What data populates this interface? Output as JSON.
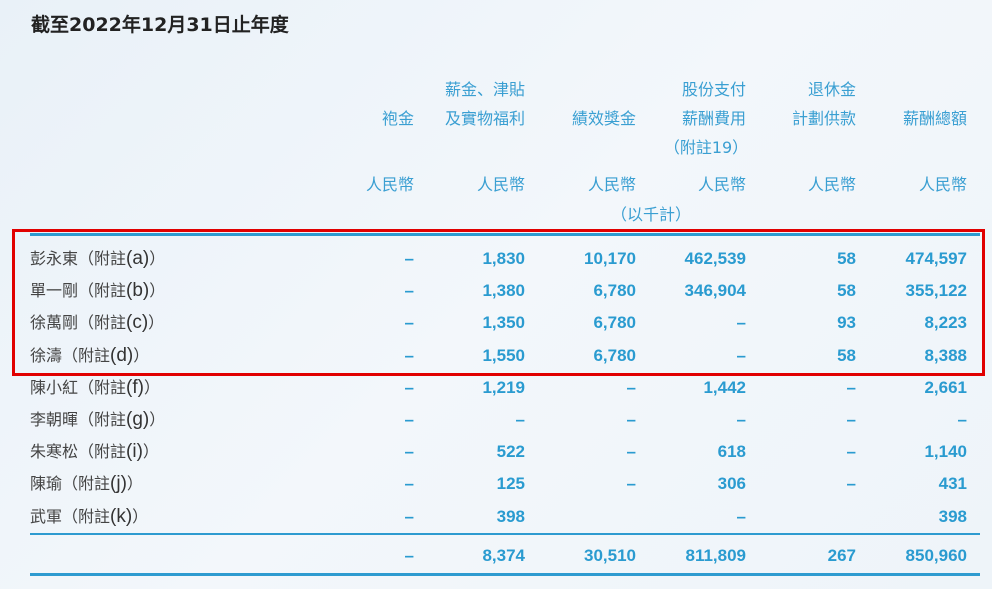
{
  "title": "截至2022年12月31日止年度",
  "columns": [
    {
      "lines": [
        "",
        "袍金"
      ],
      "unit": "人民幣"
    },
    {
      "lines": [
        "薪金、津貼",
        "及實物福利"
      ],
      "unit": "人民幣"
    },
    {
      "lines": [
        "",
        "績效獎金"
      ],
      "unit": "人民幣"
    },
    {
      "lines": [
        "股份支付",
        "薪酬費用",
        "（附註19）"
      ],
      "unit": "人民幣"
    },
    {
      "lines": [
        "退休金",
        "計劃供款"
      ],
      "unit": "人民幣"
    },
    {
      "lines": [
        "",
        "薪酬總額"
      ],
      "unit": "人民幣"
    }
  ],
  "unit_note": "（以千計）",
  "rows": [
    {
      "name": "彭永東（附註",
      "note": "(a)",
      "values": [
        "–",
        "1,830",
        "10,170",
        "462,539",
        "58",
        "474,597"
      ]
    },
    {
      "name": "單一剛（附註",
      "note": "(b)",
      "values": [
        "–",
        "1,380",
        "6,780",
        "346,904",
        "58",
        "355,122"
      ]
    },
    {
      "name": "徐萬剛（附註",
      "note": "(c)",
      "values": [
        "–",
        "1,350",
        "6,780",
        "–",
        "93",
        "8,223"
      ]
    },
    {
      "name": "徐濤（附註",
      "note": "(d)",
      "values": [
        "–",
        "1,550",
        "6,780",
        "–",
        "58",
        "8,388"
      ]
    },
    {
      "name": "陳小紅（附註",
      "note": "(f)",
      "values": [
        "–",
        "1,219",
        "–",
        "1,442",
        "–",
        "2,661"
      ]
    },
    {
      "name": "李朝暉（附註",
      "note": "(g)",
      "values": [
        "–",
        "–",
        "–",
        "–",
        "–",
        "–"
      ]
    },
    {
      "name": "朱寒松（附註",
      "note": "(i)",
      "values": [
        "–",
        "522",
        "–",
        "618",
        "–",
        "1,140"
      ]
    },
    {
      "name": "陳瑜（附註",
      "note": "(j)",
      "values": [
        "–",
        "125",
        "–",
        "306",
        "–",
        "431"
      ]
    },
    {
      "name": "武軍（附註",
      "note": "(k)",
      "values": [
        "–",
        "398",
        "",
        "–",
        "",
        "398"
      ]
    }
  ],
  "total": {
    "values": [
      "–",
      "8,374",
      "30,510",
      "811,809",
      "267",
      "850,960"
    ]
  },
  "colors": {
    "accent": "#2a9bd0",
    "highlight_box": "#e10000"
  }
}
